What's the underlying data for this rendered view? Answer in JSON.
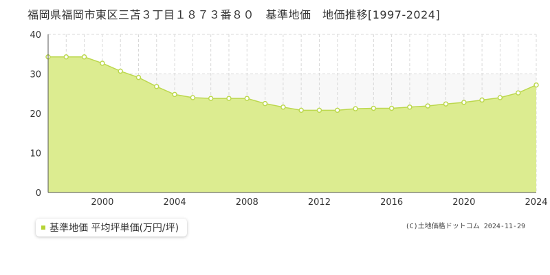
{
  "chart_data": {
    "type": "area",
    "title": "福岡県福岡市東区三苫３丁目１８７３番８０　基準地価　地価推移[1997-2024]",
    "x": [
      1997,
      1998,
      1999,
      2000,
      2001,
      2002,
      2003,
      2004,
      2005,
      2006,
      2007,
      2008,
      2009,
      2010,
      2011,
      2012,
      2013,
      2014,
      2015,
      2016,
      2017,
      2018,
      2019,
      2020,
      2021,
      2022,
      2023,
      2024
    ],
    "series": [
      {
        "name": "基準地価 平均坪単価(万円/坪)",
        "values": [
          34.3,
          34.3,
          34.3,
          32.7,
          30.7,
          29.1,
          26.8,
          24.8,
          24.0,
          23.8,
          23.8,
          23.8,
          22.5,
          21.6,
          20.8,
          20.8,
          20.8,
          21.2,
          21.3,
          21.3,
          21.6,
          21.9,
          22.4,
          22.8,
          23.4,
          24.0,
          25.2,
          27.2
        ]
      }
    ],
    "xlim": [
      1997,
      2024
    ],
    "ylim": [
      0,
      40
    ],
    "yticks": [
      0,
      10,
      20,
      30,
      40
    ],
    "xticks": [
      2000,
      2004,
      2008,
      2012,
      2016,
      2020,
      2024
    ],
    "grid": true,
    "legend": "bottom-left",
    "colors": {
      "fill": "#dcec90",
      "line": "#bcd84e",
      "marker": "#bcd84e",
      "legend_marker": "#b5d334",
      "band": "#f8f8f8",
      "grid": "#d8d8d8"
    }
  },
  "copyright": "(C)土地価格ドットコム 2024-11-29"
}
